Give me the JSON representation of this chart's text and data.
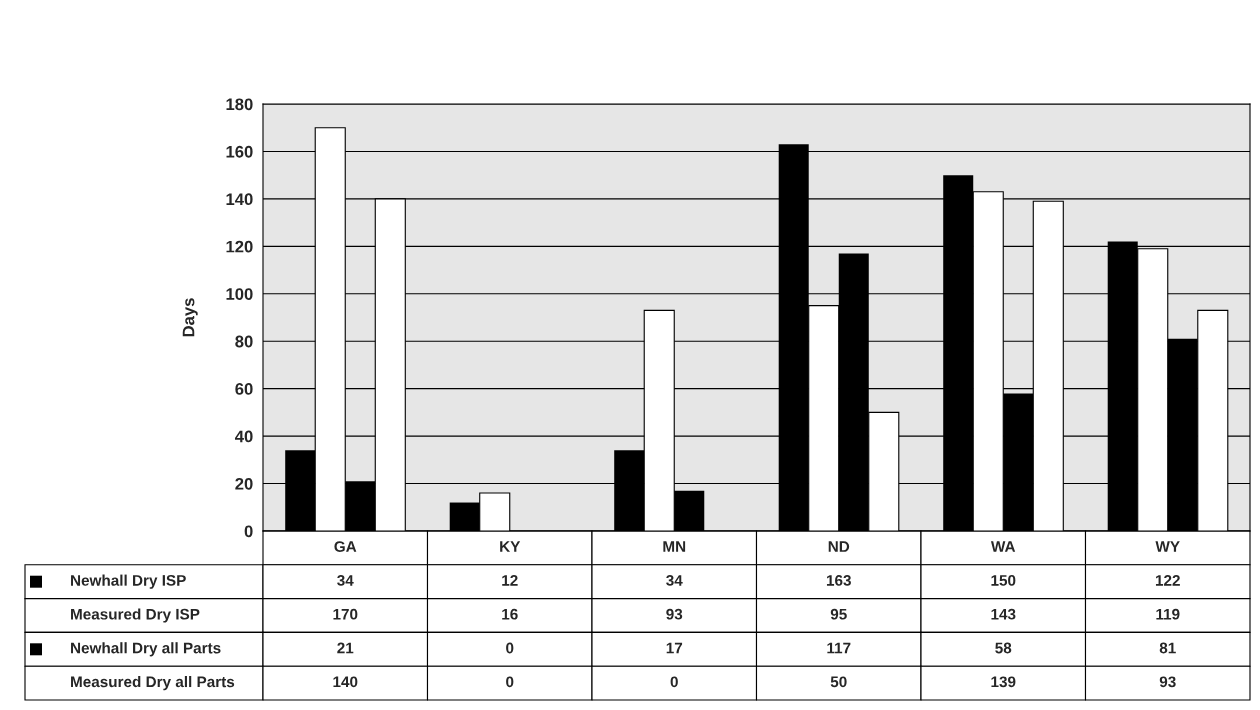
{
  "chart_data": {
    "type": "bar",
    "ylabel": "Days",
    "categories": [
      "GA",
      "KY",
      "MN",
      "ND",
      "WA",
      "WY"
    ],
    "series": [
      {
        "name": "Newhall Dry ISP",
        "color": "#000000",
        "values": [
          34,
          12,
          34,
          163,
          150,
          122
        ]
      },
      {
        "name": "Measured Dry ISP",
        "color": "#ffffff",
        "values": [
          170,
          16,
          93,
          95,
          143,
          119
        ]
      },
      {
        "name": "Newhall Dry all Parts",
        "color": "#000000",
        "values": [
          21,
          0,
          17,
          117,
          58,
          81
        ]
      },
      {
        "name": "Measured Dry all Parts",
        "color": "#ffffff",
        "values": [
          140,
          0,
          0,
          50,
          139,
          93
        ]
      }
    ],
    "ylim": [
      0,
      180
    ],
    "yticks": [
      0,
      20,
      40,
      60,
      80,
      100,
      120,
      140,
      160,
      180
    ],
    "grid": "y",
    "data_labels": true,
    "tick_labels": "y",
    "legend": "bottom"
  }
}
